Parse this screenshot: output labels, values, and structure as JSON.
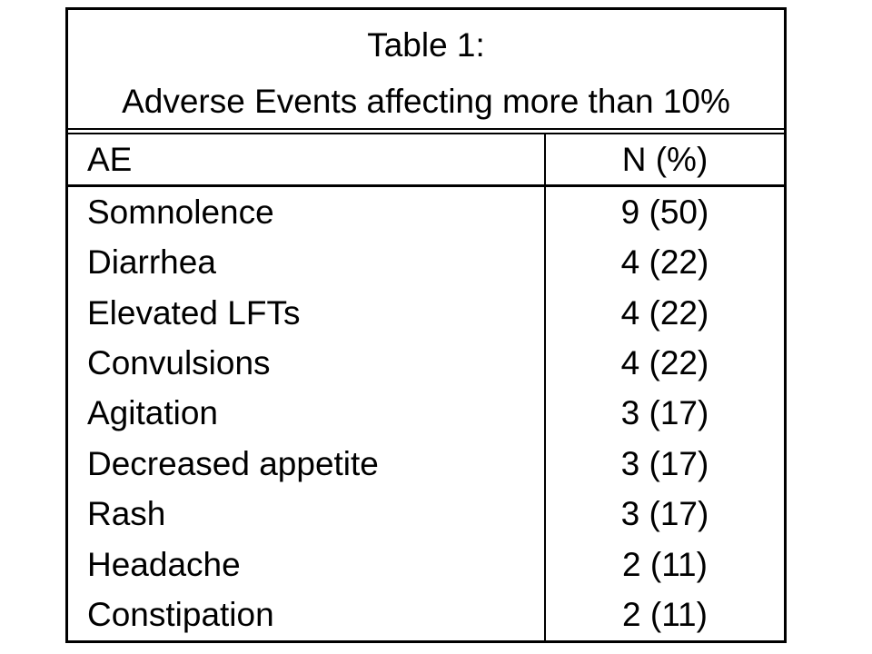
{
  "page": {
    "background": "#ffffff"
  },
  "colors": {
    "border": "#000000",
    "text": "#000000",
    "table_background": "#ffffff"
  },
  "title": {
    "line1": "Table 1:",
    "line2": "Adverse Events affecting more than 10%"
  },
  "chart_data": {
    "type": "table",
    "title": "Table 1: Adverse Events affecting more than 10%",
    "columns": [
      "AE",
      "N (%)"
    ],
    "rows": [
      [
        "Somnolence",
        "9 (50)"
      ],
      [
        "Diarrhea",
        "4 (22)"
      ],
      [
        "Elevated LFTs",
        "4 (22)"
      ],
      [
        "Convulsions",
        "4 (22)"
      ],
      [
        "Agitation",
        "3 (17)"
      ],
      [
        "Decreased appetite",
        "3 (17)"
      ],
      [
        "Rash",
        "3 (17)"
      ],
      [
        "Headache",
        "2 (11)"
      ],
      [
        "Constipation",
        "2 (11)"
      ]
    ],
    "counts": [
      9,
      4,
      4,
      4,
      3,
      3,
      3,
      2,
      2
    ],
    "percentages": [
      50,
      22,
      22,
      22,
      17,
      17,
      17,
      11,
      11
    ]
  }
}
